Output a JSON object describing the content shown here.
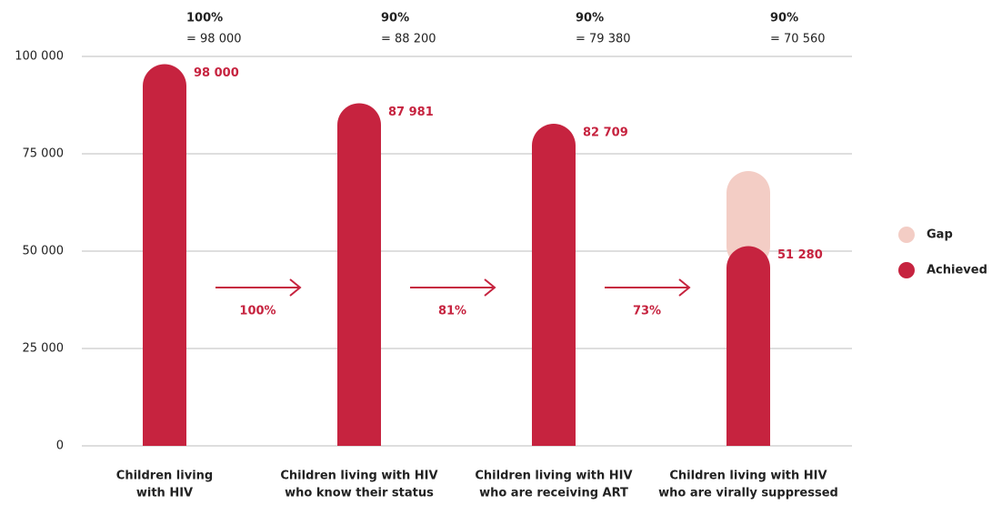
{
  "chart_data": {
    "type": "bar",
    "categories": [
      [
        "Children living",
        "with HIV"
      ],
      [
        "Children living with HIV",
        "who know their status"
      ],
      [
        "Children living with HIV",
        "who are receiving ART"
      ],
      [
        "Children living with HIV",
        "who are virally suppressed"
      ]
    ],
    "series": [
      {
        "name": "Achieved",
        "color": "#c6233f",
        "values": [
          98000,
          87981,
          82709,
          51280
        ],
        "value_labels": [
          "98 000",
          "87 981",
          "82 709",
          "51 280"
        ]
      },
      {
        "name": "Gap",
        "color": "#f3cdc5",
        "values": [
          null,
          null,
          null,
          19280
        ]
      }
    ],
    "targets": [
      {
        "percent": "100%",
        "label": "= 98 000"
      },
      {
        "percent": "90%",
        "label": "= 88 200"
      },
      {
        "percent": "90%",
        "label": "= 79 380"
      },
      {
        "percent": "90%",
        "label": "= 70 560"
      }
    ],
    "conversions": [
      "100%",
      "81%",
      "73%"
    ],
    "ylim": [
      0,
      100000
    ],
    "yticks": [
      0,
      {
        "value": 25000,
        "label": "25 000"
      },
      {
        "value": 50000,
        "label": "50 000"
      },
      {
        "value": 75000,
        "label": "75 000"
      },
      {
        "value": 100000,
        "label": "100 000"
      }
    ],
    "grid": true,
    "legend": "right"
  }
}
